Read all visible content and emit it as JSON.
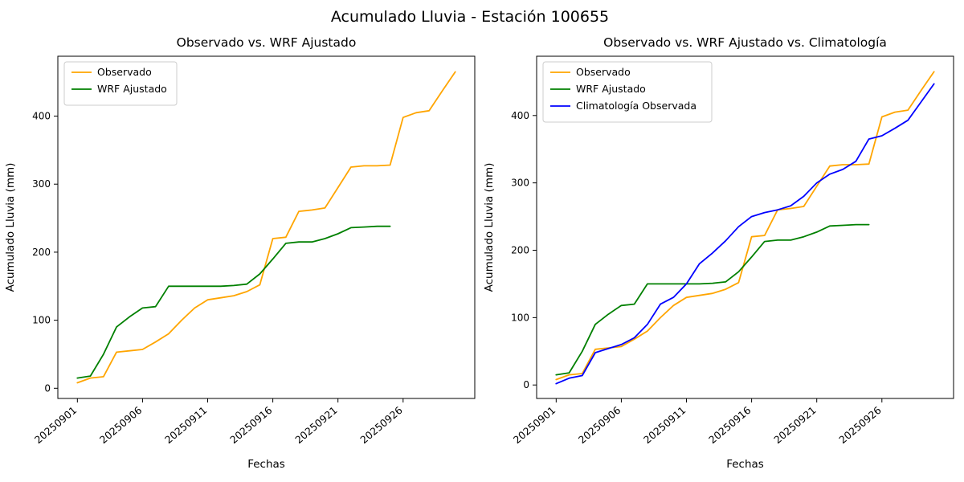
{
  "figure": {
    "suptitle": "Acumulado Lluvia - Estación 100655"
  },
  "chart_data": [
    {
      "type": "line",
      "title": "Observado vs. WRF Ajustado",
      "xlabel": "Fechas",
      "ylabel": "Acumulado Lluvia (mm)",
      "legend_position": "upper left",
      "grid": false,
      "x": [
        "20250901",
        "20250902",
        "20250903",
        "20250904",
        "20250905",
        "20250906",
        "20250907",
        "20250908",
        "20250909",
        "20250910",
        "20250911",
        "20250912",
        "20250913",
        "20250914",
        "20250915",
        "20250916",
        "20250917",
        "20250918",
        "20250919",
        "20250920",
        "20250921",
        "20250922",
        "20250923",
        "20250924",
        "20250925",
        "20250926",
        "20250927",
        "20250928",
        "20250929",
        "20250930"
      ],
      "xtick_indices": [
        0,
        5,
        10,
        15,
        20,
        25
      ],
      "xtick_labels": [
        "20250901",
        "20250906",
        "20250911",
        "20250916",
        "20250921",
        "20250926"
      ],
      "yticks": [
        0,
        100,
        200,
        300,
        400
      ],
      "ylim": [
        -15,
        488
      ],
      "xlim": [
        -1.5,
        30.5
      ],
      "series": [
        {
          "name": "Observado",
          "color": "#FFA500",
          "values": [
            8,
            15,
            17,
            53,
            55,
            57,
            68,
            80,
            100,
            118,
            130,
            133,
            136,
            142,
            152,
            220,
            222,
            260,
            262,
            265,
            295,
            325,
            327,
            327,
            328,
            398,
            405,
            408,
            437,
            465
          ]
        },
        {
          "name": "WRF Ajustado",
          "color": "#008000",
          "values": [
            15,
            18,
            50,
            90,
            105,
            118,
            120,
            150,
            150,
            150,
            150,
            150,
            151,
            153,
            168,
            190,
            213,
            215,
            215,
            220,
            227,
            236,
            237,
            238,
            238
          ]
        }
      ]
    },
    {
      "type": "line",
      "title": "Observado vs. WRF Ajustado vs. Climatología",
      "xlabel": "Fechas",
      "ylabel": "Acumulado Lluvia (mm)",
      "legend_position": "upper left",
      "grid": false,
      "x": [
        "20250901",
        "20250902",
        "20250903",
        "20250904",
        "20250905",
        "20250906",
        "20250907",
        "20250908",
        "20250909",
        "20250910",
        "20250911",
        "20250912",
        "20250913",
        "20250914",
        "20250915",
        "20250916",
        "20250917",
        "20250918",
        "20250919",
        "20250920",
        "20250921",
        "20250922",
        "20250923",
        "20250924",
        "20250925",
        "20250926",
        "20250927",
        "20250928",
        "20250929",
        "20250930"
      ],
      "xtick_indices": [
        0,
        5,
        10,
        15,
        20,
        25
      ],
      "xtick_labels": [
        "20250901",
        "20250906",
        "20250911",
        "20250916",
        "20250921",
        "20250926"
      ],
      "yticks": [
        0,
        100,
        200,
        300,
        400
      ],
      "ylim": [
        -20,
        488
      ],
      "xlim": [
        -1.5,
        30.5
      ],
      "series": [
        {
          "name": "Observado",
          "color": "#FFA500",
          "values": [
            8,
            15,
            17,
            53,
            55,
            57,
            68,
            80,
            100,
            118,
            130,
            133,
            136,
            142,
            152,
            220,
            222,
            260,
            262,
            265,
            295,
            325,
            327,
            327,
            328,
            398,
            405,
            408,
            437,
            465
          ]
        },
        {
          "name": "WRF Ajustado",
          "color": "#008000",
          "values": [
            15,
            18,
            50,
            90,
            105,
            118,
            120,
            150,
            150,
            150,
            150,
            150,
            151,
            153,
            168,
            190,
            213,
            215,
            215,
            220,
            227,
            236,
            237,
            238,
            238
          ]
        },
        {
          "name": "Climatología Observada",
          "color": "#0000FF",
          "values": [
            2,
            10,
            14,
            48,
            54,
            60,
            70,
            90,
            120,
            130,
            150,
            180,
            196,
            214,
            235,
            250,
            256,
            260,
            266,
            280,
            300,
            313,
            320,
            332,
            365,
            370,
            381,
            393,
            420,
            447
          ]
        }
      ]
    }
  ]
}
